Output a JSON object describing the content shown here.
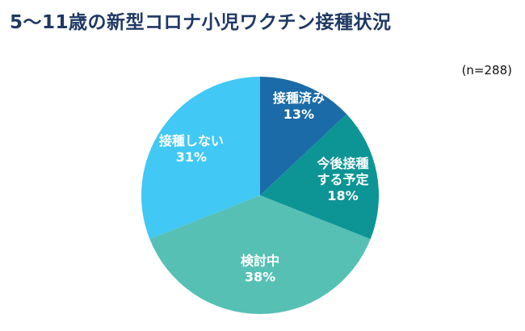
{
  "chart_data": {
    "type": "pie",
    "title": "5〜11歳の新型コロナ小児ワクチン接種状況",
    "note": "(n=288)",
    "labels": [
      "接種済み",
      "今後接種\nする予定",
      "検討中",
      "接種しない"
    ],
    "values": [
      13,
      18,
      38,
      31
    ],
    "unit": "%",
    "colors": [
      "#1B6BA8",
      "#0D9494",
      "#56C0B4",
      "#41C8F4"
    ],
    "label_color": "#FFFFFF",
    "start_angle_deg": 0,
    "direction": "clockwise",
    "legend": "none",
    "center": [
      322,
      242
    ],
    "radius": 147,
    "label_radius_fraction": [
      0.82,
      0.71,
      0.62,
      0.7
    ]
  }
}
